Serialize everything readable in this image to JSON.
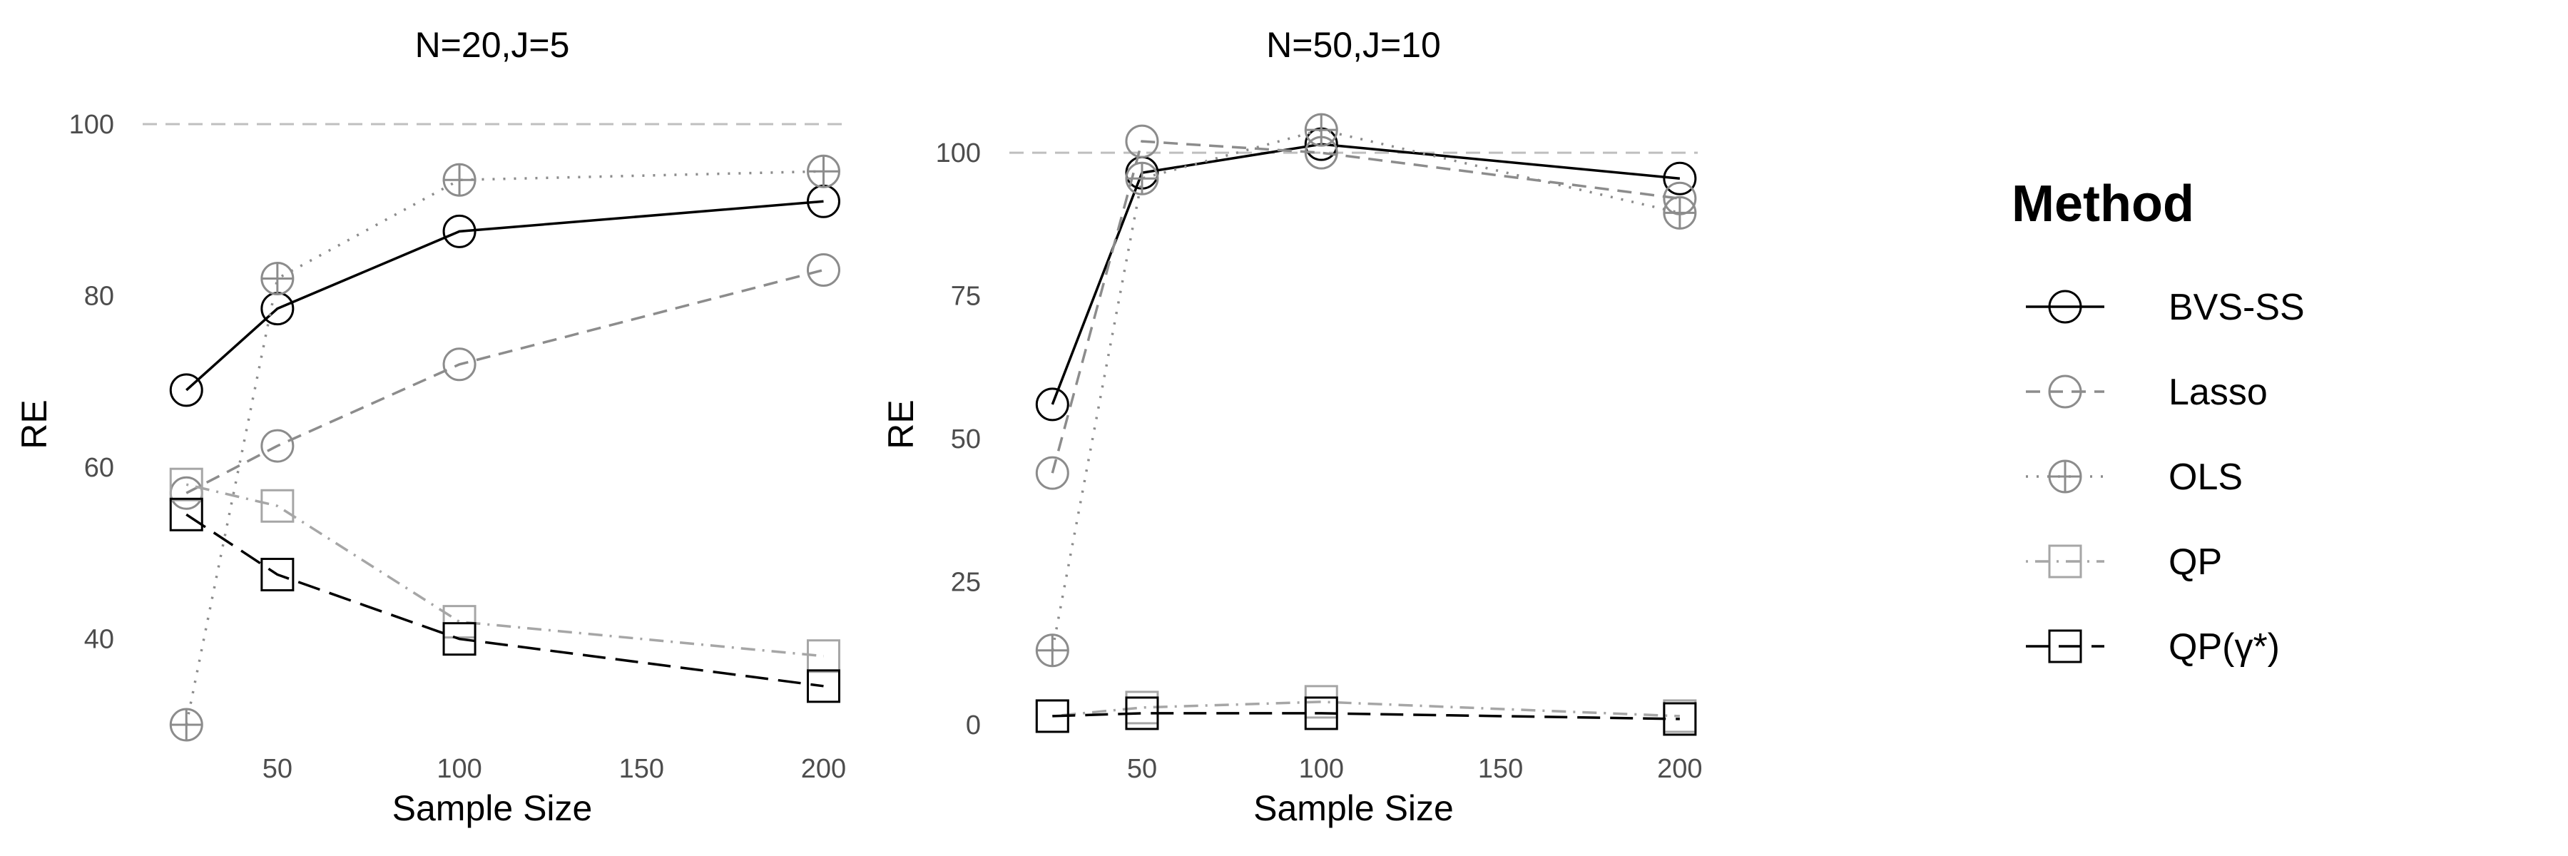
{
  "chart_data": [
    {
      "type": "line",
      "title": "N=20,J=5",
      "xlabel": "Sample Size",
      "ylabel": "RE",
      "x": [
        25,
        50,
        100,
        200
      ],
      "xticks": [
        50,
        100,
        150,
        200
      ],
      "xlim": [
        13,
        205
      ],
      "yticks": [
        40,
        60,
        80,
        100
      ],
      "ylim": [
        28,
        102
      ],
      "reference_line": 100,
      "series": [
        {
          "name": "BVS-SS",
          "values": [
            69,
            78.5,
            87.5,
            91
          ]
        },
        {
          "name": "Lasso",
          "values": [
            57,
            62.5,
            72,
            83
          ]
        },
        {
          "name": "OLS",
          "values": [
            30,
            82,
            93.5,
            94.5
          ]
        },
        {
          "name": "QP",
          "values": [
            58,
            55.5,
            42,
            38
          ]
        },
        {
          "name": "QP(γ*)",
          "values": [
            54.5,
            47.5,
            40,
            34.5
          ]
        }
      ]
    },
    {
      "type": "line",
      "title": "N=50,J=10",
      "xlabel": "Sample Size",
      "ylabel": "RE",
      "x": [
        25,
        50,
        100,
        200
      ],
      "xticks": [
        50,
        100,
        150,
        200
      ],
      "xlim": [
        13,
        205
      ],
      "yticks": [
        0,
        25,
        50,
        75,
        100
      ],
      "ylim": [
        -3,
        108
      ],
      "reference_line": 100,
      "series": [
        {
          "name": "BVS-SS",
          "values": [
            56,
            96.5,
            101.5,
            95.5
          ]
        },
        {
          "name": "Lasso",
          "values": [
            44,
            102,
            100,
            92
          ]
        },
        {
          "name": "OLS",
          "values": [
            13,
            95.5,
            104,
            89.5
          ]
        },
        {
          "name": "QP",
          "values": [
            1.5,
            3,
            4,
            1.5
          ]
        },
        {
          "name": "QP(γ*)",
          "values": [
            1.5,
            2,
            2,
            1
          ]
        }
      ]
    }
  ],
  "legend": {
    "title": "Method",
    "placement": "right",
    "items": [
      {
        "label": "BVS-SS",
        "marker": "circle",
        "dash": "solid",
        "color": "#000000"
      },
      {
        "label": "Lasso",
        "marker": "circle",
        "dash": "dashed",
        "color": "#8c8c8c"
      },
      {
        "label": "OLS",
        "marker": "circle-plus",
        "dash": "dotted",
        "color": "#8c8c8c"
      },
      {
        "label": "QP",
        "marker": "square",
        "dash": "dotdash",
        "color": "#a6a6a6"
      },
      {
        "label": "QP(γ*)",
        "marker": "square",
        "dash": "longdash",
        "color": "#000000"
      }
    ]
  },
  "reference_line_color": "#bfbfbf"
}
